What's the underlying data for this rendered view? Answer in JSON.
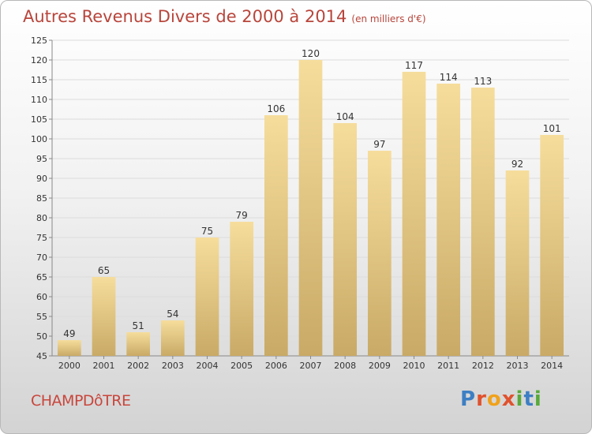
{
  "header": {
    "title": "Autres Revenus Divers de 2000 à 2014",
    "unit": "(en milliers d'€)"
  },
  "footer": {
    "commune": "CHAMPDôTRE",
    "logo_letters": [
      "P",
      "r",
      "o",
      "x",
      "i",
      "t",
      "i"
    ],
    "logo_colors": [
      "#3d7fc4",
      "#e0522d",
      "#f0a21b",
      "#e0522d",
      "#59a93b",
      "#3d7fc4",
      "#59a93b"
    ]
  },
  "colors": {
    "bar_top": "#f6dd9c",
    "bar_bottom": "#c9aa66",
    "title": "#b8453b",
    "text": "#333333"
  },
  "chart_data": {
    "type": "bar",
    "title": "Autres Revenus Divers de 2000 à 2014",
    "ylabel": "",
    "xlabel": "",
    "categories": [
      "2000",
      "2001",
      "2002",
      "2003",
      "2004",
      "2005",
      "2006",
      "2007",
      "2008",
      "2009",
      "2010",
      "2011",
      "2012",
      "2013",
      "2014"
    ],
    "values": [
      49,
      65,
      51,
      54,
      75,
      79,
      106,
      120,
      104,
      97,
      117,
      114,
      113,
      92,
      101
    ],
    "ylim": [
      45,
      125
    ],
    "yticks": [
      45,
      50,
      55,
      60,
      65,
      70,
      75,
      80,
      85,
      90,
      95,
      100,
      105,
      110,
      115,
      120,
      125
    ],
    "grid": true
  }
}
